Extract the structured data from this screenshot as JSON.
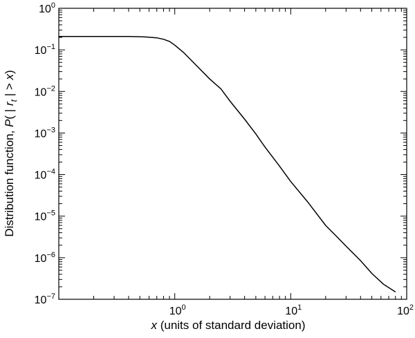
{
  "chart_data": {
    "type": "line",
    "x_scale": "log",
    "y_scale": "log",
    "xlim": [
      0.1,
      100
    ],
    "ylim": [
      1e-07,
      1
    ],
    "xlabel": {
      "italic": "x",
      "rest": " (units of standard deviation)"
    },
    "ylabel": {
      "prefix": "Distribution function, ",
      "P": "P",
      "open": "( | ",
      "r": "r",
      "sub": "t",
      "close": " | > ",
      "x": "x",
      "end": ")"
    },
    "x_ticks": [
      {
        "value": 1,
        "base": "10",
        "exp": "0"
      },
      {
        "value": 10,
        "base": "10",
        "exp": "1"
      },
      {
        "value": 100,
        "base": "10",
        "exp": "2"
      }
    ],
    "y_ticks": [
      {
        "value": 1,
        "base": "10",
        "exp": "0"
      },
      {
        "value": 0.1,
        "base": "10",
        "exp": "−1"
      },
      {
        "value": 0.01,
        "base": "10",
        "exp": "−2"
      },
      {
        "value": 0.001,
        "base": "10",
        "exp": "−3"
      },
      {
        "value": 0.0001,
        "base": "10",
        "exp": "−4"
      },
      {
        "value": 1e-05,
        "base": "10",
        "exp": "−5"
      },
      {
        "value": 1e-06,
        "base": "10",
        "exp": "−6"
      },
      {
        "value": 1e-07,
        "base": "10",
        "exp": "−7"
      }
    ],
    "grid": false,
    "series": [
      {
        "x": [
          0.1,
          0.2,
          0.4,
          0.55,
          0.7,
          0.8,
          0.9,
          1.0,
          1.2,
          1.5,
          2.0,
          2.5,
          3.0,
          4.0,
          5.0,
          6.0,
          8.0,
          10.0,
          14.0,
          20.0,
          25.0,
          30.0,
          40.0,
          50.0,
          63.0,
          80.0
        ],
        "y": [
          0.21,
          0.21,
          0.21,
          0.205,
          0.195,
          0.18,
          0.16,
          0.13,
          0.085,
          0.045,
          0.02,
          0.0115,
          0.0058,
          0.00215,
          0.00095,
          0.00046,
          0.00016,
          6.8e-05,
          2.2e-05,
          6e-06,
          3.2e-06,
          1.9e-06,
          8.5e-07,
          4.2e-07,
          2.3e-07,
          1.5e-07
        ]
      }
    ]
  }
}
